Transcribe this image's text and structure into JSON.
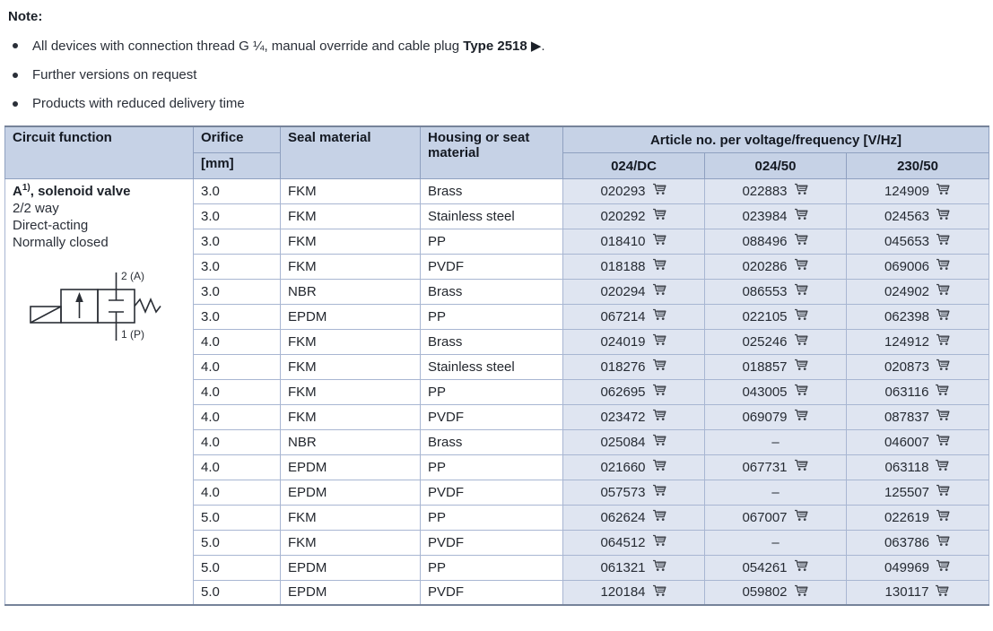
{
  "note": {
    "title": "Note:",
    "bullets": [
      {
        "plain": "All devices with connection thread G ¼, manual override and cable plug ",
        "bold": "Type 2518 ▶",
        "suffix": "."
      },
      {
        "plain": "Further versions on request",
        "bold": "",
        "suffix": ""
      },
      {
        "plain": "Products with reduced delivery time",
        "bold": "",
        "suffix": ""
      }
    ]
  },
  "table": {
    "headers": {
      "circuit_function": "Circuit function",
      "orifice": "Orifice",
      "orifice_unit": "[mm]",
      "seal_material": "Seal material",
      "housing": "Housing or seat material",
      "article_group": "Article no. per voltage/frequency [V/Hz]",
      "voltage_columns": [
        "024/DC",
        "024/50",
        "230/50"
      ]
    },
    "circuit": {
      "title_prefix": "A",
      "title_sup": "1)",
      "title_suffix": ", solenoid valve",
      "lines": [
        "2/2 way",
        "Direct-acting",
        "Normally closed"
      ],
      "symbol_top_label": "2 (A)",
      "symbol_bottom_label": "1 (P)"
    },
    "rows": [
      {
        "orifice": "3.0",
        "seal": "FKM",
        "housing": "Brass",
        "articles": [
          "020293",
          "022883",
          "124909"
        ]
      },
      {
        "orifice": "3.0",
        "seal": "FKM",
        "housing": "Stainless steel",
        "articles": [
          "020292",
          "023984",
          "024563"
        ]
      },
      {
        "orifice": "3.0",
        "seal": "FKM",
        "housing": "PP",
        "articles": [
          "018410",
          "088496",
          "045653"
        ]
      },
      {
        "orifice": "3.0",
        "seal": "FKM",
        "housing": "PVDF",
        "articles": [
          "018188",
          "020286",
          "069006"
        ]
      },
      {
        "orifice": "3.0",
        "seal": "NBR",
        "housing": "Brass",
        "articles": [
          "020294",
          "086553",
          "024902"
        ]
      },
      {
        "orifice": "3.0",
        "seal": "EPDM",
        "housing": "PP",
        "articles": [
          "067214",
          "022105",
          "062398"
        ]
      },
      {
        "orifice": "4.0",
        "seal": "FKM",
        "housing": "Brass",
        "articles": [
          "024019",
          "025246",
          "124912"
        ]
      },
      {
        "orifice": "4.0",
        "seal": "FKM",
        "housing": "Stainless steel",
        "articles": [
          "018276",
          "018857",
          "020873"
        ]
      },
      {
        "orifice": "4.0",
        "seal": "FKM",
        "housing": "PP",
        "articles": [
          "062695",
          "043005",
          "063116"
        ]
      },
      {
        "orifice": "4.0",
        "seal": "FKM",
        "housing": "PVDF",
        "articles": [
          "023472",
          "069079",
          "087837"
        ]
      },
      {
        "orifice": "4.0",
        "seal": "NBR",
        "housing": "Brass",
        "articles": [
          "025084",
          "–",
          "046007"
        ]
      },
      {
        "orifice": "4.0",
        "seal": "EPDM",
        "housing": "PP",
        "articles": [
          "021660",
          "067731",
          "063118"
        ]
      },
      {
        "orifice": "4.0",
        "seal": "EPDM",
        "housing": "PVDF",
        "articles": [
          "057573",
          "–",
          "125507"
        ]
      },
      {
        "orifice": "5.0",
        "seal": "FKM",
        "housing": "PP",
        "articles": [
          "062624",
          "067007",
          "022619"
        ]
      },
      {
        "orifice": "5.0",
        "seal": "FKM",
        "housing": "PVDF",
        "articles": [
          "064512",
          "–",
          "063786"
        ]
      },
      {
        "orifice": "5.0",
        "seal": "EPDM",
        "housing": "PP",
        "articles": [
          "061321",
          "054261",
          "049969"
        ]
      },
      {
        "orifice": "5.0",
        "seal": "EPDM",
        "housing": "PVDF",
        "articles": [
          "120184",
          "059802",
          "130117"
        ]
      }
    ]
  },
  "colors": {
    "header_bg": "#c6d2e6",
    "article_cell_bg": "#dfe5f1",
    "grid_line": "#a8b6d2",
    "outer_border": "#76839a",
    "text": "#23272e"
  }
}
